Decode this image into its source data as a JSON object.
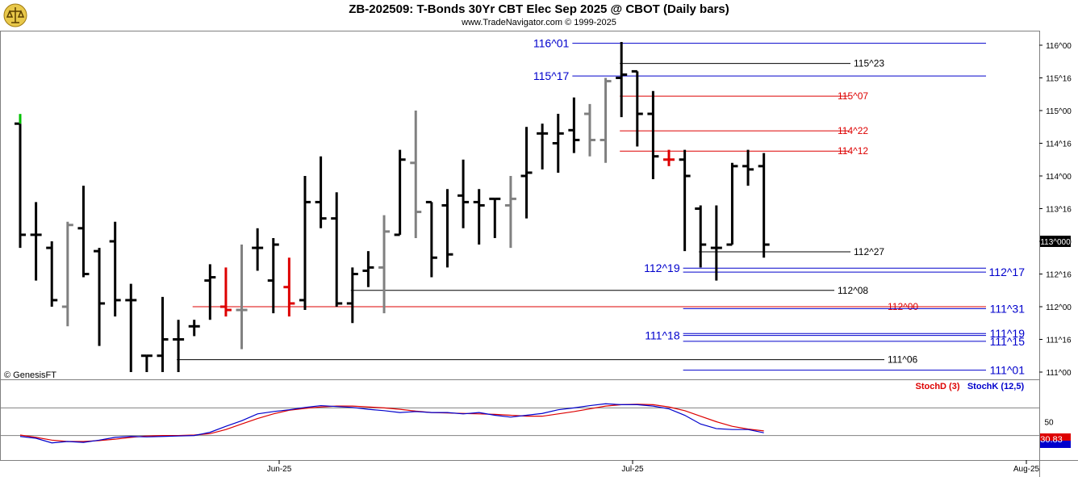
{
  "title": "ZB-202509:  T-Bonds 30Yr CBT Elec Sep 2025 @ CBOT  (Daily bars)",
  "subtitle": "www.TradeNavigator.com © 1999-2025",
  "copyright": "© GenesisFT",
  "colors": {
    "up_bar": "#000000",
    "neutral_bar": "#808080",
    "highlight_bar": "#dd0000",
    "first_bar_tick": "#00c000",
    "support_resistance_blue": "#0000cc",
    "support_resistance_red": "#dd0000",
    "stoch_d": "#dd0000",
    "stoch_k": "#0000cc"
  },
  "chart_data": [
    {
      "type": "ohlc",
      "title": "ZB-202509 Daily bars",
      "y_ticks": [
        "111^00",
        "111^16",
        "112^00",
        "112^16",
        "113^00",
        "113^16",
        "114^00",
        "114^16",
        "115^00",
        "115^16",
        "116^00"
      ],
      "y_tick_values": [
        111,
        111.5,
        112,
        112.5,
        113,
        113.5,
        114,
        114.5,
        115,
        115.5,
        116
      ],
      "ylim": [
        110.9,
        116.12
      ],
      "x_labels": [
        "Jun-25",
        "Jul-25",
        "Aug-25"
      ],
      "current_price_label": "113^000",
      "bars": [
        {
          "o": 114.8,
          "h": 114.8,
          "l": 112.9,
          "c": 113.1,
          "color": "black"
        },
        {
          "o": 113.1,
          "h": 113.6,
          "l": 112.4,
          "c": 113.1,
          "color": "black"
        },
        {
          "o": 112.9,
          "h": 113.0,
          "l": 112.0,
          "c": 112.1,
          "color": "black"
        },
        {
          "o": 112.0,
          "h": 113.3,
          "l": 111.7,
          "c": 113.25,
          "color": "gray"
        },
        {
          "o": 113.2,
          "h": 113.85,
          "l": 112.45,
          "c": 112.5,
          "color": "black"
        },
        {
          "o": 112.85,
          "h": 112.9,
          "l": 111.4,
          "c": 112.05,
          "color": "black"
        },
        {
          "o": 113.0,
          "h": 113.3,
          "l": 111.85,
          "c": 112.1,
          "color": "black"
        },
        {
          "o": 112.1,
          "h": 112.35,
          "l": 111.0,
          "c": 112.1,
          "color": "black"
        },
        {
          "o": 111.25,
          "h": 111.25,
          "l": 111.0,
          "c": 111.25,
          "color": "black"
        },
        {
          "o": 111.25,
          "h": 112.15,
          "l": 111.0,
          "c": 111.5,
          "color": "black"
        },
        {
          "o": 111.5,
          "h": 111.8,
          "l": 111.0,
          "c": 111.5,
          "color": "black"
        },
        {
          "o": 111.7,
          "h": 111.8,
          "l": 111.55,
          "c": 111.7,
          "color": "black"
        },
        {
          "o": 112.4,
          "h": 112.65,
          "l": 111.8,
          "c": 112.45,
          "color": "black"
        },
        {
          "o": 112.0,
          "h": 112.6,
          "l": 111.85,
          "c": 111.95,
          "color": "red"
        },
        {
          "o": 111.95,
          "h": 112.95,
          "l": 111.35,
          "c": 111.95,
          "color": "gray"
        },
        {
          "o": 112.9,
          "h": 113.2,
          "l": 112.55,
          "c": 112.9,
          "color": "black"
        },
        {
          "o": 112.4,
          "h": 113.05,
          "l": 111.9,
          "c": 112.95,
          "color": "black"
        },
        {
          "o": 112.3,
          "h": 112.75,
          "l": 111.85,
          "c": 112.05,
          "color": "red"
        },
        {
          "o": 112.1,
          "h": 114.0,
          "l": 111.95,
          "c": 113.6,
          "color": "black"
        },
        {
          "o": 113.6,
          "h": 114.3,
          "l": 113.2,
          "c": 113.35,
          "color": "black"
        },
        {
          "o": 113.35,
          "h": 113.75,
          "l": 112.0,
          "c": 112.05,
          "color": "black"
        },
        {
          "o": 112.05,
          "h": 112.6,
          "l": 111.75,
          "c": 112.5,
          "color": "black"
        },
        {
          "o": 112.55,
          "h": 112.85,
          "l": 112.3,
          "c": 112.6,
          "color": "black"
        },
        {
          "o": 112.6,
          "h": 113.4,
          "l": 111.9,
          "c": 113.15,
          "color": "gray"
        },
        {
          "o": 113.1,
          "h": 114.4,
          "l": 113.1,
          "c": 114.25,
          "color": "black"
        },
        {
          "o": 114.2,
          "h": 115.0,
          "l": 113.05,
          "c": 113.45,
          "color": "gray"
        },
        {
          "o": 113.6,
          "h": 113.6,
          "l": 112.45,
          "c": 112.75,
          "color": "black"
        },
        {
          "o": 113.55,
          "h": 113.8,
          "l": 112.6,
          "c": 112.8,
          "color": "black"
        },
        {
          "o": 113.7,
          "h": 114.25,
          "l": 113.2,
          "c": 113.6,
          "color": "black"
        },
        {
          "o": 113.6,
          "h": 113.8,
          "l": 112.95,
          "c": 113.55,
          "color": "black"
        },
        {
          "o": 113.65,
          "h": 113.65,
          "l": 113.05,
          "c": 113.65,
          "color": "black"
        },
        {
          "o": 113.55,
          "h": 114.0,
          "l": 112.9,
          "c": 113.65,
          "color": "gray"
        },
        {
          "o": 114.0,
          "h": 114.75,
          "l": 113.35,
          "c": 114.05,
          "color": "black"
        },
        {
          "o": 114.65,
          "h": 114.8,
          "l": 114.1,
          "c": 114.65,
          "color": "black"
        },
        {
          "o": 114.5,
          "h": 114.95,
          "l": 114.05,
          "c": 114.65,
          "color": "black"
        },
        {
          "o": 114.7,
          "h": 115.2,
          "l": 114.35,
          "c": 114.55,
          "color": "black"
        },
        {
          "o": 114.95,
          "h": 115.1,
          "l": 114.3,
          "c": 114.55,
          "color": "gray"
        },
        {
          "o": 114.55,
          "h": 115.5,
          "l": 114.2,
          "c": 115.45,
          "color": "gray"
        },
        {
          "o": 115.5,
          "h": 116.05,
          "l": 114.9,
          "c": 115.55,
          "color": "black"
        },
        {
          "o": 115.6,
          "h": 115.6,
          "l": 114.45,
          "c": 114.95,
          "color": "black"
        },
        {
          "o": 114.95,
          "h": 115.3,
          "l": 113.95,
          "c": 114.3,
          "color": "black"
        },
        {
          "o": 114.25,
          "h": 114.4,
          "l": 114.15,
          "c": 114.25,
          "color": "red"
        },
        {
          "o": 114.25,
          "h": 114.4,
          "l": 112.85,
          "c": 114.0,
          "color": "black"
        },
        {
          "o": 113.5,
          "h": 113.55,
          "l": 112.6,
          "c": 112.95,
          "color": "black"
        },
        {
          "o": 112.9,
          "h": 113.55,
          "l": 112.4,
          "c": 112.9,
          "color": "black"
        },
        {
          "o": 112.95,
          "h": 114.2,
          "l": 112.95,
          "c": 114.15,
          "color": "black"
        },
        {
          "o": 114.15,
          "h": 114.4,
          "l": 113.85,
          "c": 114.1,
          "color": "black"
        },
        {
          "o": 114.15,
          "h": 114.35,
          "l": 112.75,
          "c": 112.95,
          "color": "black"
        }
      ],
      "levels": [
        {
          "label": "116^01",
          "value": 116.03,
          "color": "blue",
          "x0_bar": 35,
          "label_side": "left"
        },
        {
          "label": "115^23",
          "value": 115.72,
          "color": "black",
          "x0_bar": 38,
          "label_side": "right"
        },
        {
          "label": "115^17",
          "value": 115.53,
          "color": "blue",
          "x0_bar": 35,
          "label_side": "left"
        },
        {
          "label": "115^07",
          "value": 115.22,
          "color": "red",
          "x0_bar": 38,
          "label_side": "right"
        },
        {
          "label": "114^22",
          "value": 114.69,
          "color": "red",
          "x0_bar": 38,
          "label_side": "right"
        },
        {
          "label": "114^12",
          "value": 114.38,
          "color": "red",
          "x0_bar": 38,
          "label_side": "right"
        },
        {
          "label": "112^27",
          "value": 112.84,
          "color": "black",
          "x0_bar": 43,
          "label_side": "right"
        },
        {
          "label": "112^19",
          "value": 112.59,
          "color": "blue",
          "x0_bar": 42,
          "label_side": "left"
        },
        {
          "label": "112^17",
          "value": 112.53,
          "color": "blue",
          "x0_bar": 42,
          "label_side": "axis"
        },
        {
          "label": "112^08",
          "value": 112.25,
          "color": "black",
          "x0_bar": 21,
          "label_side": "right"
        },
        {
          "label": "112^00",
          "value": 112.0,
          "color": "red",
          "x0_bar": 11,
          "label_side": "right"
        },
        {
          "label": "111^31",
          "value": 111.97,
          "color": "blue",
          "x0_bar": 42,
          "label_side": "axis"
        },
        {
          "label": "111^19",
          "value": 111.59,
          "color": "blue",
          "x0_bar": 42,
          "label_side": "axis"
        },
        {
          "label": "111^18",
          "value": 111.56,
          "color": "blue",
          "x0_bar": 42,
          "label_side": "left"
        },
        {
          "label": "111^15",
          "value": 111.47,
          "color": "blue",
          "x0_bar": 42,
          "label_side": "axis"
        },
        {
          "label": "111^06",
          "value": 111.19,
          "color": "black",
          "x0_bar": 10,
          "label_side": "right"
        },
        {
          "label": "111^01",
          "value": 111.03,
          "color": "blue",
          "x0_bar": 42,
          "label_side": "axis"
        }
      ]
    },
    {
      "type": "line",
      "title": "Stochastics",
      "ylim": [
        0,
        100
      ],
      "y_ticks": [
        50
      ],
      "reference_lines": [
        20,
        80
      ],
      "last_value_label": "30.83",
      "series": [
        {
          "name": "StochD (3)",
          "color": "red",
          "values": [
            21,
            16,
            10,
            7,
            7,
            9,
            12,
            16,
            19,
            20,
            20,
            21,
            24,
            33,
            45,
            57,
            67,
            75,
            79,
            82,
            84,
            84,
            82,
            80,
            77,
            73,
            70,
            69,
            68,
            67,
            66,
            64,
            62,
            62,
            67,
            72,
            78,
            84,
            87,
            88,
            87,
            82,
            74,
            62,
            50,
            40,
            34,
            30
          ]
        },
        {
          "name": "StochK (12,5)",
          "color": "blue",
          "values": [
            18,
            14,
            4,
            7,
            5,
            10,
            16,
            18,
            17,
            18,
            19,
            20,
            27,
            40,
            52,
            67,
            72,
            76,
            81,
            85,
            83,
            81,
            77,
            74,
            70,
            72,
            70,
            70,
            67,
            70,
            64,
            60,
            64,
            68,
            76,
            80,
            85,
            89,
            87,
            87,
            84,
            78,
            64,
            45,
            35,
            33,
            33,
            26
          ]
        }
      ]
    }
  ]
}
